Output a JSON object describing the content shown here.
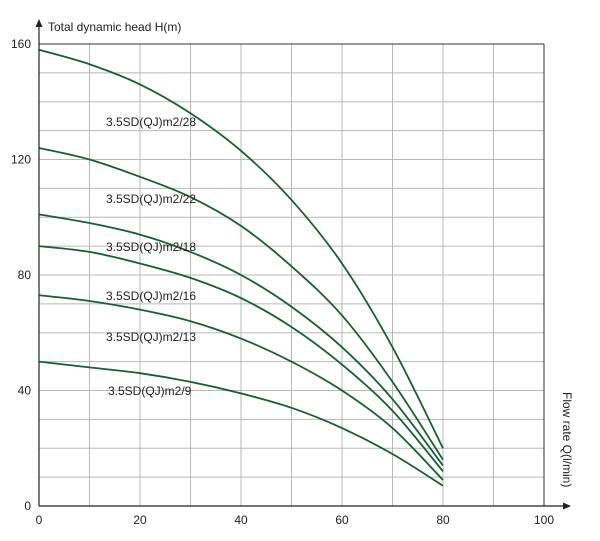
{
  "chart_data": {
    "type": "line",
    "ylabel": "Total dynamic head H(m)",
    "xlabel": "Flow rate Q(l/min)",
    "xlim": [
      0,
      100
    ],
    "ylim": [
      0,
      160
    ],
    "x_ticks": [
      0,
      20,
      40,
      60,
      80,
      100
    ],
    "y_ticks": [
      0,
      40,
      80,
      120,
      160
    ],
    "grid": true,
    "line_color": "#1a5e35",
    "grid_color": "#b8b8b8",
    "series": [
      {
        "name": "3.5SD(QJ)m2/28",
        "x": [
          0,
          10,
          20,
          30,
          40,
          50,
          60,
          70,
          80
        ],
        "y": [
          158,
          153,
          146,
          136,
          123,
          106,
          84,
          55,
          20
        ]
      },
      {
        "name": "3.5SD(QJ)m2/22",
        "x": [
          0,
          10,
          20,
          30,
          40,
          50,
          60,
          70,
          80
        ],
        "y": [
          124,
          120,
          114,
          107,
          97,
          83,
          66,
          43,
          16
        ]
      },
      {
        "name": "3.5SD(QJ)m2/18",
        "x": [
          0,
          10,
          20,
          30,
          40,
          50,
          60,
          70,
          80
        ],
        "y": [
          101,
          98,
          94,
          88,
          80,
          69,
          55,
          37,
          14
        ]
      },
      {
        "name": "3.5SD(QJ)m2/16",
        "x": [
          0,
          10,
          20,
          30,
          40,
          50,
          60,
          70,
          80
        ],
        "y": [
          90,
          88,
          84,
          79,
          72,
          62,
          49,
          33,
          12
        ]
      },
      {
        "name": "3.5SD(QJ)m2/13",
        "x": [
          0,
          10,
          20,
          30,
          40,
          50,
          60,
          70,
          80
        ],
        "y": [
          73,
          71,
          68,
          64,
          58,
          50,
          40,
          27,
          9
        ]
      },
      {
        "name": "3.5SD(QJ)m2/9",
        "x": [
          0,
          10,
          20,
          30,
          40,
          50,
          60,
          70,
          80
        ],
        "y": [
          50,
          48,
          46,
          43,
          39,
          34,
          27,
          18,
          7
        ]
      }
    ]
  }
}
